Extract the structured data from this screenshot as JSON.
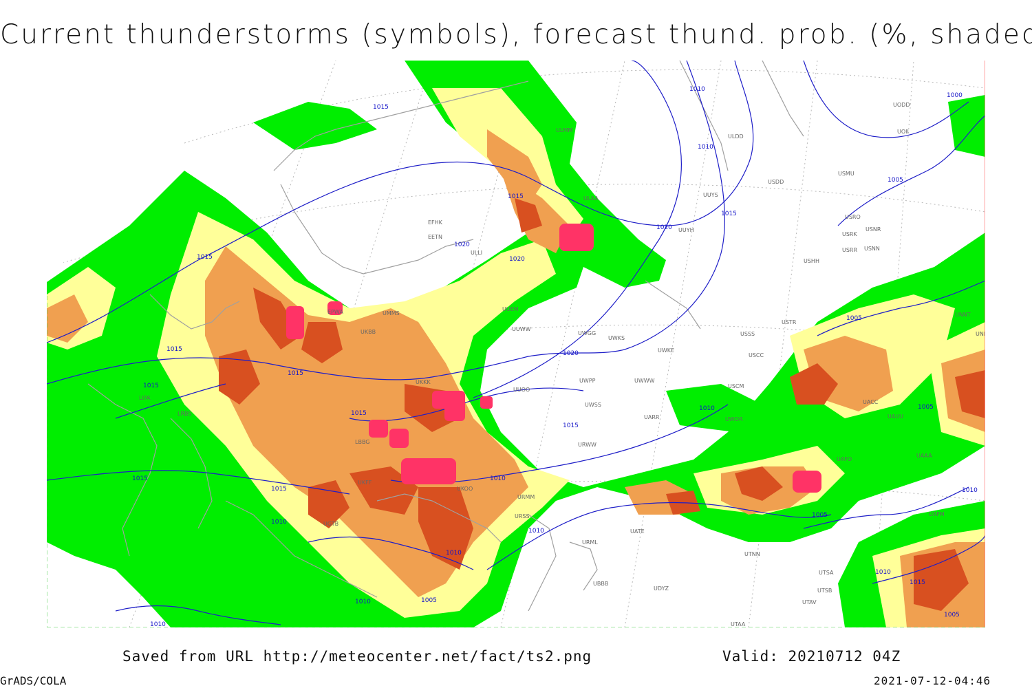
{
  "title": "Current thunderstorms (symbols), forecast thund. prob. (%, shaded)",
  "footer": {
    "saved_from": "Saved from URL http://meteocenter.net/fact/ts2.png",
    "valid": "Valid: 20210712 04Z",
    "software": "GrADS/COLA",
    "timestamp": "2021-07-12-04:46"
  },
  "colors": {
    "prob_low": "#00ee00",
    "prob_mid1": "#ffff99",
    "prob_mid2": "#f0a050",
    "prob_high": "#d85020",
    "storm_symbol": "#ff3366",
    "coastline": "#a0a0a0",
    "isobar": "#1e1ec8",
    "border_right": "#ff8080"
  },
  "isobar_labels": [
    "1015",
    "1010",
    "1010",
    "1000",
    "1005",
    "1015",
    "1020",
    "1020",
    "1015",
    "1020",
    "1020",
    "1015",
    "1015",
    "1015",
    "1015",
    "1015",
    "1015",
    "1015",
    "1010",
    "1010",
    "1010",
    "1010",
    "1005",
    "1005",
    "1005",
    "1005",
    "1010",
    "1015",
    "1015",
    "1010",
    "1005",
    "1010",
    "1010",
    "1010"
  ],
  "station_codes": [
    "EFHK",
    "EETN",
    "ULLI",
    "UUEM",
    "UUWW",
    "UWGG",
    "UWKS",
    "UWKE",
    "UWWW",
    "UWPP",
    "UUOO",
    "UWSS",
    "URWW",
    "UARR",
    "UWOR",
    "USCM",
    "USCC",
    "USSS",
    "USTR",
    "UNNT",
    "UNBB",
    "USHH",
    "USRR",
    "USNN",
    "USRK",
    "USNR",
    "USRO",
    "USMU",
    "USDD",
    "UUYS",
    "UUYH",
    "ULDD",
    "UOII",
    "UODD",
    "ULAA",
    "ULMM",
    "UMMS",
    "UKBB",
    "UKKK",
    "EPWA",
    "LIPA",
    "URMM",
    "URSS",
    "URML",
    "UATE",
    "UTNN",
    "UTSA",
    "UTSB",
    "UTAV",
    "UTAA",
    "UAAA",
    "UACC",
    "UAUU",
    "UAFO",
    "UAFM",
    "UBBB",
    "UGTB",
    "UDYZ",
    "LBBG",
    "LRBS",
    "UKOO",
    "UKFF"
  ],
  "storm_cells": 10
}
